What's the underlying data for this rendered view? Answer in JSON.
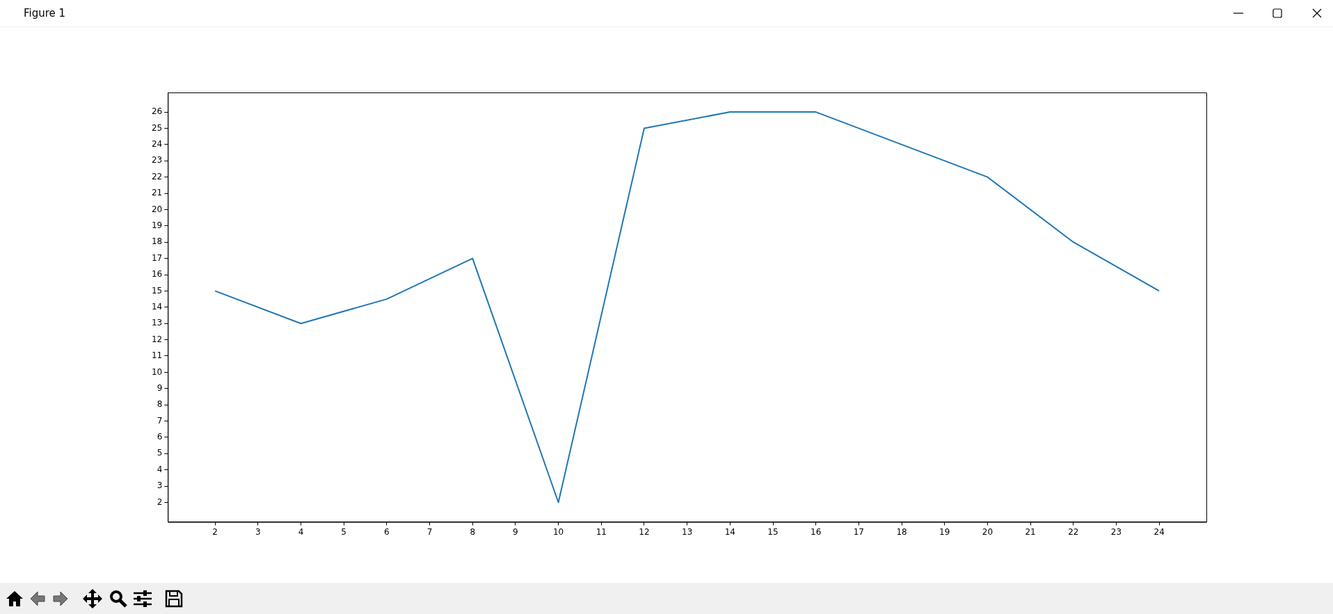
{
  "chart_data": {
    "type": "line",
    "x": [
      2,
      4,
      6,
      8,
      10,
      12,
      14,
      16,
      18,
      20,
      22,
      24
    ],
    "series": [
      {
        "color": "#1f77b4",
        "values": [
          15,
          13,
          14.5,
          17,
          2,
          25,
          26,
          26,
          24,
          22,
          18,
          15
        ]
      }
    ],
    "xlim": [
      0.9,
      25.1
    ],
    "xticks": [
      2,
      3,
      4,
      5,
      6,
      7,
      8,
      9,
      10,
      11,
      12,
      13,
      14,
      15,
      16,
      17,
      18,
      19,
      20,
      21,
      22,
      23,
      24
    ],
    "ylim": [
      0.8,
      27.2
    ],
    "yticks": [
      2,
      3,
      4,
      5,
      6,
      7,
      8,
      9,
      10,
      11,
      12,
      13,
      14,
      15,
      16,
      17,
      18,
      19,
      20,
      21,
      22,
      23,
      24,
      25,
      26
    ],
    "grid": false,
    "legend": false,
    "marker": "none",
    "line_style": "solid",
    "annotations": [
      "Figure 1"
    ]
  }
}
